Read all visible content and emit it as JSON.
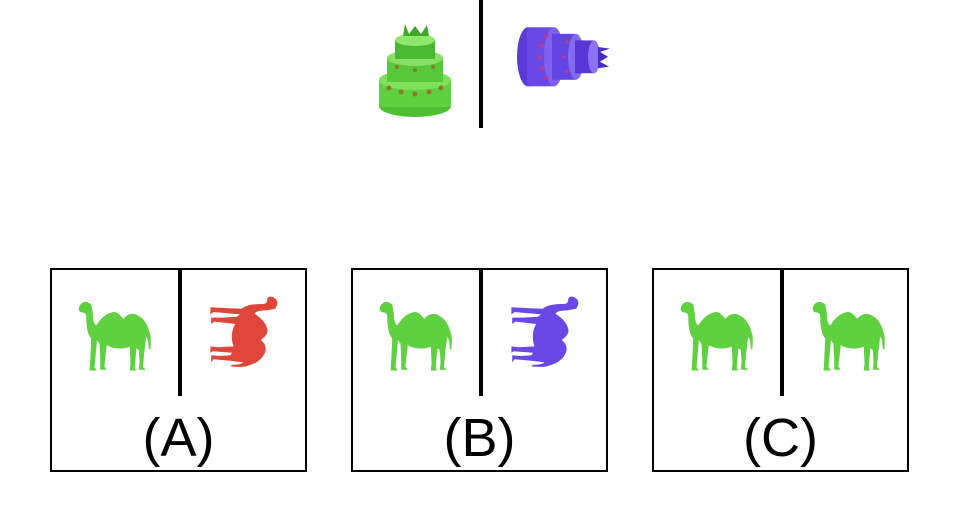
{
  "example": {
    "left_shape": {
      "icon": "cake-icon",
      "color": "#5fd040",
      "view": "upright"
    },
    "right_shape": {
      "icon": "cake-icon",
      "color": "#6a48e6",
      "view": "rotated-sideways"
    }
  },
  "options": [
    {
      "label": "(A)",
      "left_shape": {
        "icon": "camel-icon",
        "color": "#5fd040",
        "view": "upright"
      },
      "right_shape": {
        "icon": "camel-icon",
        "color": "#e0453c",
        "view": "rotated-sideways"
      }
    },
    {
      "label": "(B)",
      "left_shape": {
        "icon": "camel-icon",
        "color": "#5fd040",
        "view": "upright"
      },
      "right_shape": {
        "icon": "camel-icon",
        "color": "#6a48e6",
        "view": "rotated-sideways"
      }
    },
    {
      "label": "(C)",
      "left_shape": {
        "icon": "camel-icon",
        "color": "#5fd040",
        "view": "upright"
      },
      "right_shape": {
        "icon": "camel-icon",
        "color": "#5fd040",
        "view": "upright"
      }
    }
  ]
}
